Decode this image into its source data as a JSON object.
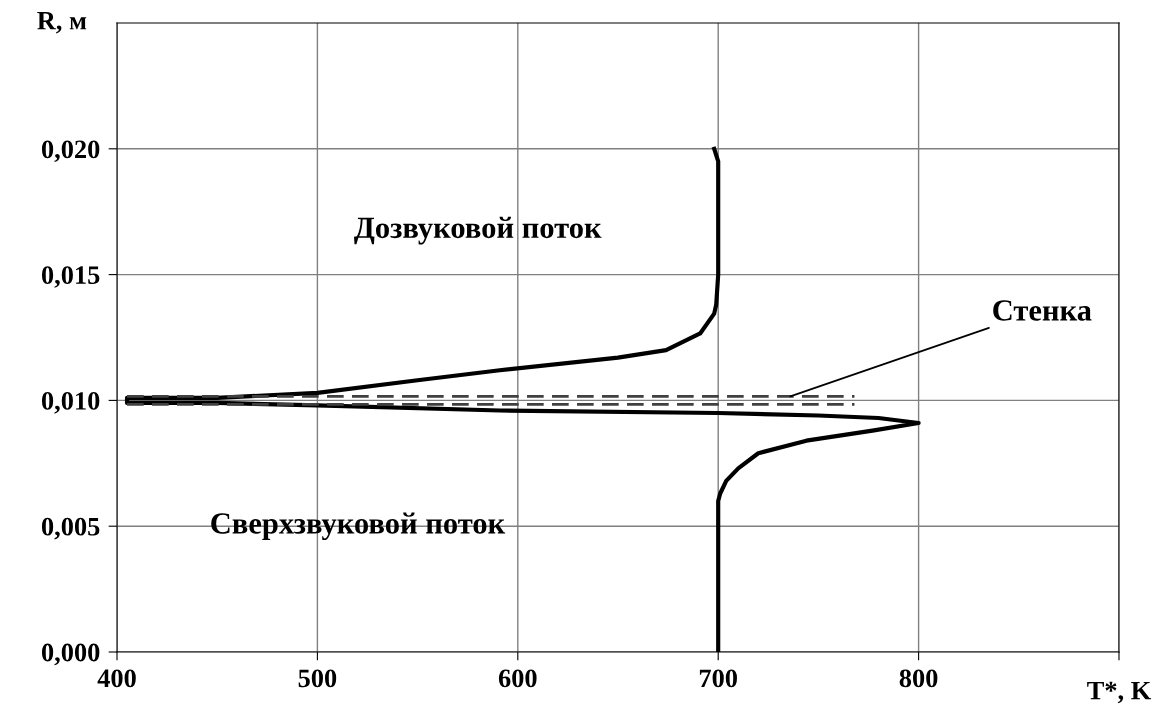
{
  "chart_data": {
    "type": "line",
    "xlabel": "T*, K",
    "ylabel": "R, м",
    "xlim": [
      400,
      900
    ],
    "xticks": [
      400,
      500,
      600,
      700,
      800,
      {
        "value": 900,
        "label": null
      }
    ],
    "ylim": [
      0,
      0.025
    ],
    "yticks": [
      {
        "value": 0,
        "label": "0,000"
      },
      {
        "value": 0.005,
        "label": "0,005"
      },
      {
        "value": 0.01,
        "label": "0,010"
      },
      {
        "value": 0.015,
        "label": "0,015"
      },
      {
        "value": 0.02,
        "label": "0,020"
      }
    ],
    "grid": true,
    "marker": "none",
    "series": [
      {
        "color": "#000000",
        "line_style": "solid",
        "x": [
          698,
          700,
          700,
          700,
          699,
          698,
          691,
          674,
          650,
          591,
          550,
          500,
          450,
          405,
          405,
          450,
          500,
          591,
          700,
          750,
          780,
          800,
          777,
          744,
          720,
          710,
          704,
          701,
          700,
          700,
          700
        ],
        "values": [
          0.02,
          0.0195,
          0.017,
          0.015,
          0.0138,
          0.01345,
          0.01266,
          0.012,
          0.0117,
          0.0112,
          0.0108,
          0.0103,
          0.0101,
          0.0101,
          0.0099,
          0.0099,
          0.0098,
          0.0096,
          0.0095,
          0.0094,
          0.0093,
          0.0091,
          0.0088,
          0.0084,
          0.0079,
          0.0073,
          0.0068,
          0.0063,
          0.006,
          0.003,
          0.0
        ]
      },
      {
        "color": "#404040",
        "line_style": "dashed",
        "x": [
          405,
          768
        ],
        "values": [
          0.01016,
          0.01016
        ]
      },
      {
        "color": "#404040",
        "line_style": "dashed",
        "x": [
          405,
          768
        ],
        "values": [
          0.00984,
          0.00984
        ]
      }
    ],
    "annotations": [
      "Дозвуковой поток",
      "Сверхзвуковой поток",
      {
        "text": "Стенка",
        "x": 736,
        "y": 0.01016
      }
    ]
  }
}
